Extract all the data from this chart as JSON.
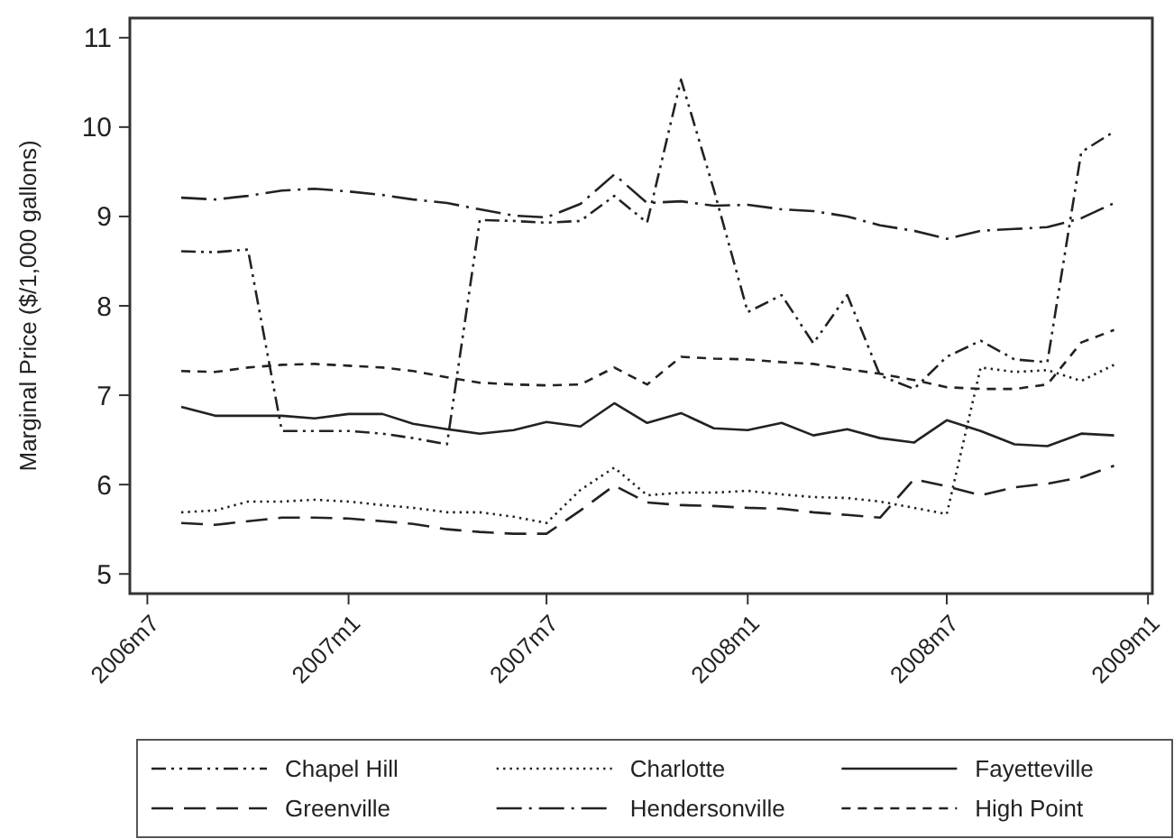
{
  "chart_data": {
    "type": "line",
    "ylabel": "Marginal Price ($/1,000 gallons)",
    "x": [
      "2006-08",
      "2006-09",
      "2006-10",
      "2006-11",
      "2006-12",
      "2007-01",
      "2007-02",
      "2007-03",
      "2007-04",
      "2007-05",
      "2007-06",
      "2007-07",
      "2007-08",
      "2007-09",
      "2007-10",
      "2007-11",
      "2007-12",
      "2008-01",
      "2008-02",
      "2008-03",
      "2008-04",
      "2008-05",
      "2008-06",
      "2008-07",
      "2008-08",
      "2008-09",
      "2008-10",
      "2008-11",
      "2008-12"
    ],
    "series": [
      {
        "name": "Chapel Hill",
        "color": "#222222",
        "line_style": "dashdotdot",
        "values": [
          8.61,
          8.6,
          8.63,
          6.6,
          6.6,
          6.6,
          6.57,
          6.52,
          6.45,
          8.96,
          8.95,
          8.93,
          8.95,
          9.23,
          8.93,
          10.53,
          9.3,
          7.93,
          8.12,
          7.58,
          8.12,
          7.22,
          7.07,
          7.43,
          7.61,
          7.4,
          7.37,
          9.72,
          9.95
        ]
      },
      {
        "name": "Charlotte",
        "color": "#222222",
        "line_style": "dotted",
        "values": [
          5.69,
          5.71,
          5.81,
          5.81,
          5.83,
          5.81,
          5.77,
          5.74,
          5.69,
          5.69,
          5.64,
          5.57,
          5.94,
          6.19,
          5.88,
          5.91,
          5.91,
          5.93,
          5.89,
          5.86,
          5.85,
          5.81,
          5.74,
          5.67,
          7.31,
          7.26,
          7.28,
          7.16,
          7.34
        ]
      },
      {
        "name": "Fayetteville",
        "color": "#222222",
        "line_style": "solid",
        "values": [
          6.87,
          6.77,
          6.77,
          6.77,
          6.74,
          6.79,
          6.79,
          6.68,
          6.62,
          6.57,
          6.61,
          6.7,
          6.65,
          6.91,
          6.69,
          6.8,
          6.63,
          6.61,
          6.69,
          6.55,
          6.62,
          6.52,
          6.47,
          6.72,
          6.6,
          6.45,
          6.43,
          6.57,
          6.55
        ]
      },
      {
        "name": "Greenville",
        "color": "#222222",
        "line_style": "longdash",
        "values": [
          5.57,
          5.55,
          5.59,
          5.63,
          5.63,
          5.62,
          5.59,
          5.56,
          5.5,
          5.47,
          5.45,
          5.45,
          5.71,
          5.99,
          5.8,
          5.77,
          5.76,
          5.74,
          5.73,
          5.69,
          5.66,
          5.63,
          6.06,
          5.98,
          5.88,
          5.97,
          6.01,
          6.08,
          6.21
        ]
      },
      {
        "name": "Hendersonville",
        "color": "#222222",
        "line_style": "longdashdot",
        "values": [
          9.21,
          9.19,
          9.23,
          9.29,
          9.31,
          9.28,
          9.24,
          9.19,
          9.15,
          9.08,
          9.01,
          8.99,
          9.14,
          9.47,
          9.15,
          9.17,
          9.12,
          9.13,
          9.08,
          9.06,
          9.0,
          8.9,
          8.84,
          8.75,
          8.84,
          8.86,
          8.88,
          8.98,
          9.15
        ]
      },
      {
        "name": "High Point",
        "color": "#222222",
        "line_style": "dashed",
        "values": [
          7.27,
          7.26,
          7.31,
          7.34,
          7.35,
          7.33,
          7.31,
          7.27,
          7.2,
          7.14,
          7.12,
          7.11,
          7.12,
          7.31,
          7.12,
          7.43,
          7.41,
          7.4,
          7.37,
          7.35,
          7.29,
          7.24,
          7.17,
          7.09,
          7.07,
          7.07,
          7.12,
          7.59,
          7.73
        ]
      }
    ],
    "xlim": [
      "2006-06-15",
      "2009-01-05"
    ],
    "xticks": [
      {
        "value": "2006-07",
        "label": "2006m7"
      },
      {
        "value": "2007-01",
        "label": "2007m1"
      },
      {
        "value": "2007-07",
        "label": "2007m7"
      },
      {
        "value": "2008-01",
        "label": "2008m1"
      },
      {
        "value": "2008-07",
        "label": "2008m7"
      },
      {
        "value": "2009-01",
        "label": "2009m1"
      }
    ],
    "ylim": [
      4.78,
      11.22
    ],
    "yticks": [
      5,
      6,
      7,
      8,
      9,
      10,
      11
    ],
    "grid": false,
    "legend": "bottom"
  }
}
